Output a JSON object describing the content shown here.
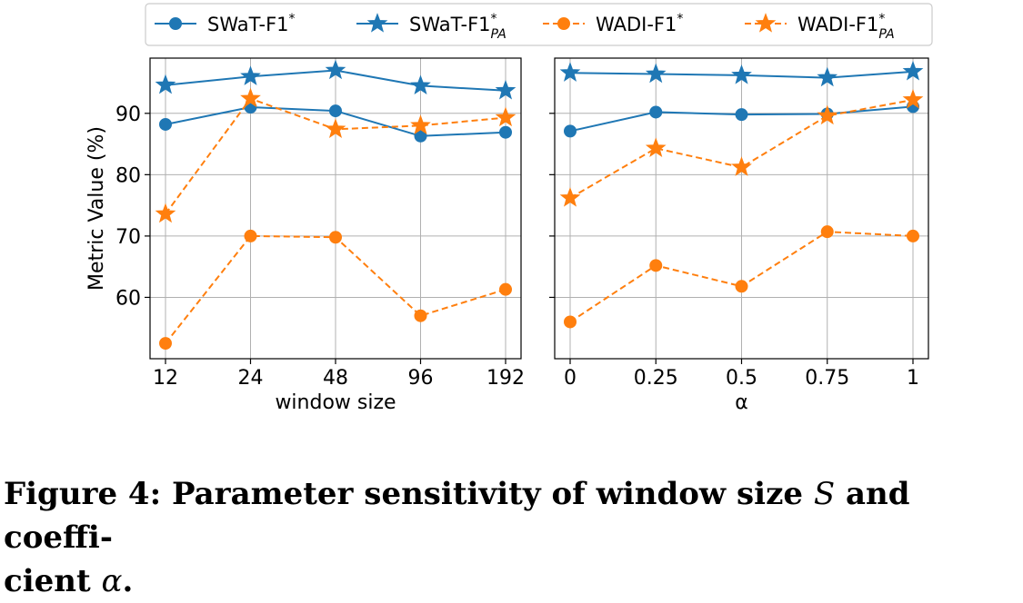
{
  "chart_data": [
    {
      "type": "line",
      "xlabel": "window size",
      "ylabel": "Metric Value (%)",
      "categories": [
        "12",
        "24",
        "48",
        "96",
        "192"
      ],
      "ylim": [
        50,
        99
      ],
      "yticks": [
        60,
        70,
        80,
        90
      ],
      "grid": true,
      "series": [
        {
          "name": "SWaT-F1*",
          "values": [
            88.2,
            91.0,
            90.4,
            86.3,
            86.9
          ]
        },
        {
          "name": "SWaT-F1*PA",
          "values": [
            94.6,
            96.0,
            97.0,
            94.5,
            93.7
          ]
        },
        {
          "name": "WADI-F1*",
          "values": [
            52.5,
            70.0,
            69.8,
            57.0,
            61.3
          ]
        },
        {
          "name": "WADI-F1*PA",
          "values": [
            73.6,
            92.4,
            87.4,
            88.0,
            89.3
          ]
        }
      ]
    },
    {
      "type": "line",
      "xlabel": "α",
      "categories": [
        "0",
        "0.25",
        "0.5",
        "0.75",
        "1"
      ],
      "ylim": [
        50,
        99
      ],
      "grid": true,
      "series": [
        {
          "name": "SWaT-F1*",
          "values": [
            87.1,
            90.2,
            89.8,
            89.9,
            91.1
          ]
        },
        {
          "name": "SWaT-F1*PA",
          "values": [
            96.6,
            96.4,
            96.2,
            95.8,
            96.8
          ]
        },
        {
          "name": "WADI-F1*",
          "values": [
            56.0,
            65.2,
            61.8,
            70.7,
            70.0
          ]
        },
        {
          "name": "WADI-F1*PA",
          "values": [
            76.2,
            84.3,
            81.2,
            89.6,
            92.2
          ]
        }
      ]
    }
  ],
  "legend": {
    "placement": "top-center",
    "entries": [
      {
        "base": "SWaT-F1",
        "sup": "*",
        "sub": "",
        "color": "#1f77b4",
        "dash": false,
        "marker": "circle"
      },
      {
        "base": "SWaT-F1",
        "sup": "*",
        "sub": "PA",
        "color": "#1f77b4",
        "dash": false,
        "marker": "star"
      },
      {
        "base": "WADI-F1",
        "sup": "*",
        "sub": "",
        "color": "#ff7f0e",
        "dash": true,
        "marker": "circle"
      },
      {
        "base": "WADI-F1",
        "sup": "*",
        "sub": "PA",
        "color": "#ff7f0e",
        "dash": true,
        "marker": "star"
      }
    ]
  },
  "caption": {
    "prefix": "Figure 4: Parameter sensitivity of window size ",
    "sym1": "S",
    "middle": " and coeffi-",
    "line2": "cient ",
    "sym2": "α",
    "end": "."
  }
}
